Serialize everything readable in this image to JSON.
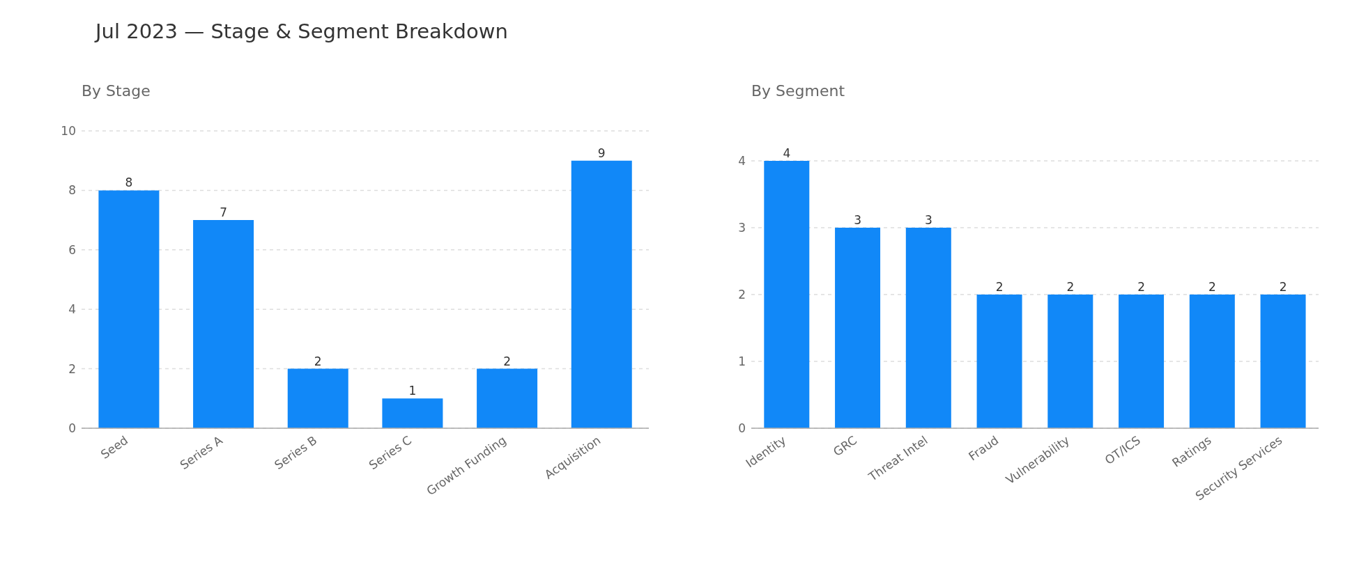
{
  "chart_data": [
    {
      "type": "bar",
      "title": "Jul 2023 — Stage & Segment Breakdown",
      "subtitle": "By Stage",
      "categories": [
        "Seed",
        "Series A",
        "Series B",
        "Series C",
        "Growth Funding",
        "Acquisition"
      ],
      "values": [
        8,
        7,
        2,
        1,
        2,
        9
      ],
      "color": "#1188f8",
      "ylim": [
        0,
        10
      ],
      "yticks": [
        0,
        2,
        4,
        6,
        8,
        10
      ],
      "grid": "y",
      "data_labels": true
    },
    {
      "type": "bar",
      "subtitle": "By Segment",
      "categories": [
        "Identity",
        "GRC",
        "Threat Intel",
        "Fraud",
        "Vulnerability",
        "OT/ICS",
        "Ratings",
        "Security Services"
      ],
      "values": [
        4,
        3,
        3,
        2,
        2,
        2,
        2,
        2
      ],
      "color": "#1188f8",
      "ylim": [
        0,
        4
      ],
      "yticks": [
        0,
        1,
        2,
        3,
        4
      ],
      "grid": "y",
      "data_labels": true
    }
  ]
}
